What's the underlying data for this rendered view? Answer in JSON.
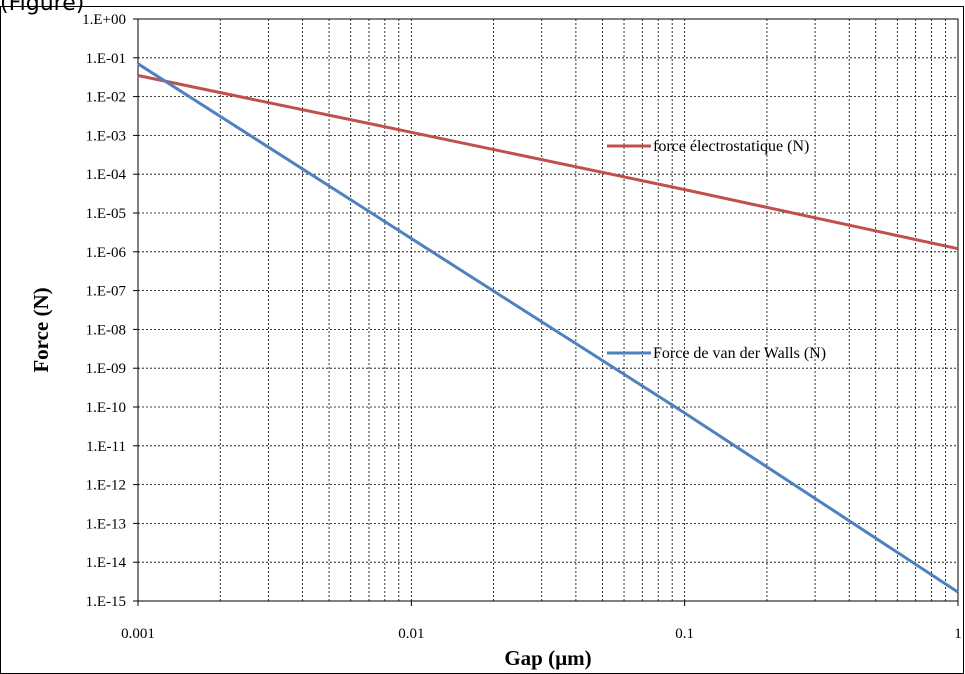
{
  "header": {
    "cropped_title": "(Figure)"
  },
  "chart_data": {
    "type": "line",
    "title": "",
    "xlabel": "Gap (µm)",
    "ylabel": "Force (N)",
    "x_scale": "log",
    "y_scale": "log",
    "xlim": [
      0.001,
      1
    ],
    "ylim": [
      1e-15,
      1
    ],
    "grid": true,
    "legend": "inline",
    "x_ticks": [
      "0.001",
      "0.01",
      "0.1",
      "1"
    ],
    "y_ticks": [
      "1.E+00",
      "1.E-01",
      "1.E-02",
      "1.E-03",
      "1.E-04",
      "1.E-05",
      "1.E-06",
      "1.E-07",
      "1.E-08",
      "1.E-09",
      "1.E-10",
      "1.E-11",
      "1.E-12",
      "1.E-13",
      "1.E-14",
      "1.E-15"
    ],
    "series": [
      {
        "name": "force électrostatique (N)",
        "color": "#c0504d",
        "x": [
          0.001,
          0.01,
          0.1,
          1
        ],
        "y": [
          0.035,
          0.0012,
          4e-05,
          1.2e-06
        ]
      },
      {
        "name": "Force de van der Walls (N)",
        "color": "#4f81bd",
        "x": [
          0.001,
          0.01,
          0.1,
          1
        ],
        "y": [
          0.07,
          2.2e-06,
          7e-11,
          1.7e-15
        ]
      }
    ]
  }
}
